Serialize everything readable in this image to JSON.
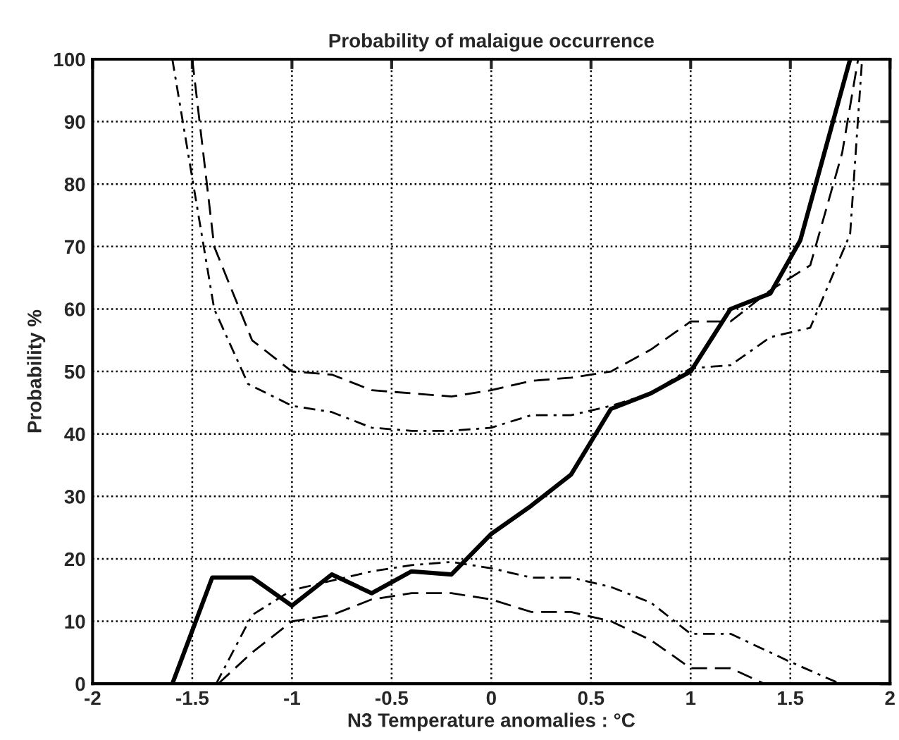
{
  "chart_data": {
    "type": "line",
    "title": "Probability of malaigue occurrence",
    "xlabel": "N3 Temperature anomalies : °C",
    "ylabel": "Probability %",
    "xlim": [
      -2,
      2
    ],
    "ylim": [
      0,
      100
    ],
    "xticks": [
      -2,
      -1.5,
      -1,
      -0.5,
      0,
      0.5,
      1,
      1.5,
      2
    ],
    "yticks": [
      0,
      10,
      20,
      30,
      40,
      50,
      60,
      70,
      80,
      90,
      100
    ],
    "grid": true,
    "marker": "none",
    "series": [
      {
        "color": "#000000",
        "line_style": "solid",
        "x": [
          -1.6,
          -1.4,
          -1.2,
          -1.0,
          -0.8,
          -0.6,
          -0.4,
          -0.2,
          0,
          0.2,
          0.4,
          0.6,
          0.8,
          1.0,
          1.2,
          1.4,
          1.55,
          1.8
        ],
        "values": [
          0,
          17,
          17,
          12.5,
          17.5,
          14.5,
          18,
          17.5,
          24,
          28.5,
          33.5,
          44,
          46.5,
          50,
          60,
          62.5,
          71,
          100
        ]
      },
      {
        "color": "#000000",
        "line_style": "dashed",
        "x": [
          -1.5,
          -1.39,
          -1.2,
          -1.0,
          -0.8,
          -0.6,
          -0.4,
          -0.2,
          0,
          0.2,
          0.4,
          0.6,
          0.8,
          1.0,
          1.2,
          1.4,
          1.6,
          1.76,
          1.84
        ],
        "values": [
          100,
          70,
          55,
          50,
          49.5,
          47,
          46.5,
          46,
          47,
          48.5,
          49,
          50,
          53.5,
          58,
          58,
          63,
          67,
          85,
          100
        ]
      },
      {
        "color": "#000000",
        "line_style": "dashdot",
        "x": [
          -1.6,
          -1.39,
          -1.22,
          -1.0,
          -0.8,
          -0.6,
          -0.4,
          -0.2,
          0,
          0.2,
          0.4,
          0.6,
          0.8,
          1.0,
          1.2,
          1.4,
          1.6,
          1.8,
          1.86
        ],
        "values": [
          100,
          60,
          48,
          44.5,
          43.5,
          41,
          40.5,
          40.5,
          41,
          43,
          43,
          44.5,
          46.5,
          50.5,
          51,
          55.5,
          57,
          72,
          100
        ]
      },
      {
        "color": "#000000",
        "line_style": "dashdot",
        "x": [
          -1.38,
          -1.2,
          -1.0,
          -0.8,
          -0.6,
          -0.4,
          -0.2,
          0,
          0.2,
          0.4,
          0.6,
          0.8,
          1.0,
          1.2,
          1.5,
          1.75
        ],
        "values": [
          0,
          11,
          15,
          16.5,
          18,
          19,
          19.5,
          18.5,
          17,
          17,
          15.5,
          13,
          8,
          8,
          3.5,
          0
        ]
      },
      {
        "color": "#000000",
        "line_style": "dashed",
        "x": [
          -1.37,
          -1.2,
          -1.0,
          -0.8,
          -0.6,
          -0.4,
          -0.2,
          0,
          0.2,
          0.4,
          0.6,
          0.8,
          1.0,
          1.2,
          1.37
        ],
        "values": [
          0,
          5,
          10,
          11,
          13.5,
          14.5,
          14.5,
          13.5,
          11.5,
          11.5,
          10,
          7,
          2.5,
          2.5,
          0
        ]
      }
    ]
  }
}
